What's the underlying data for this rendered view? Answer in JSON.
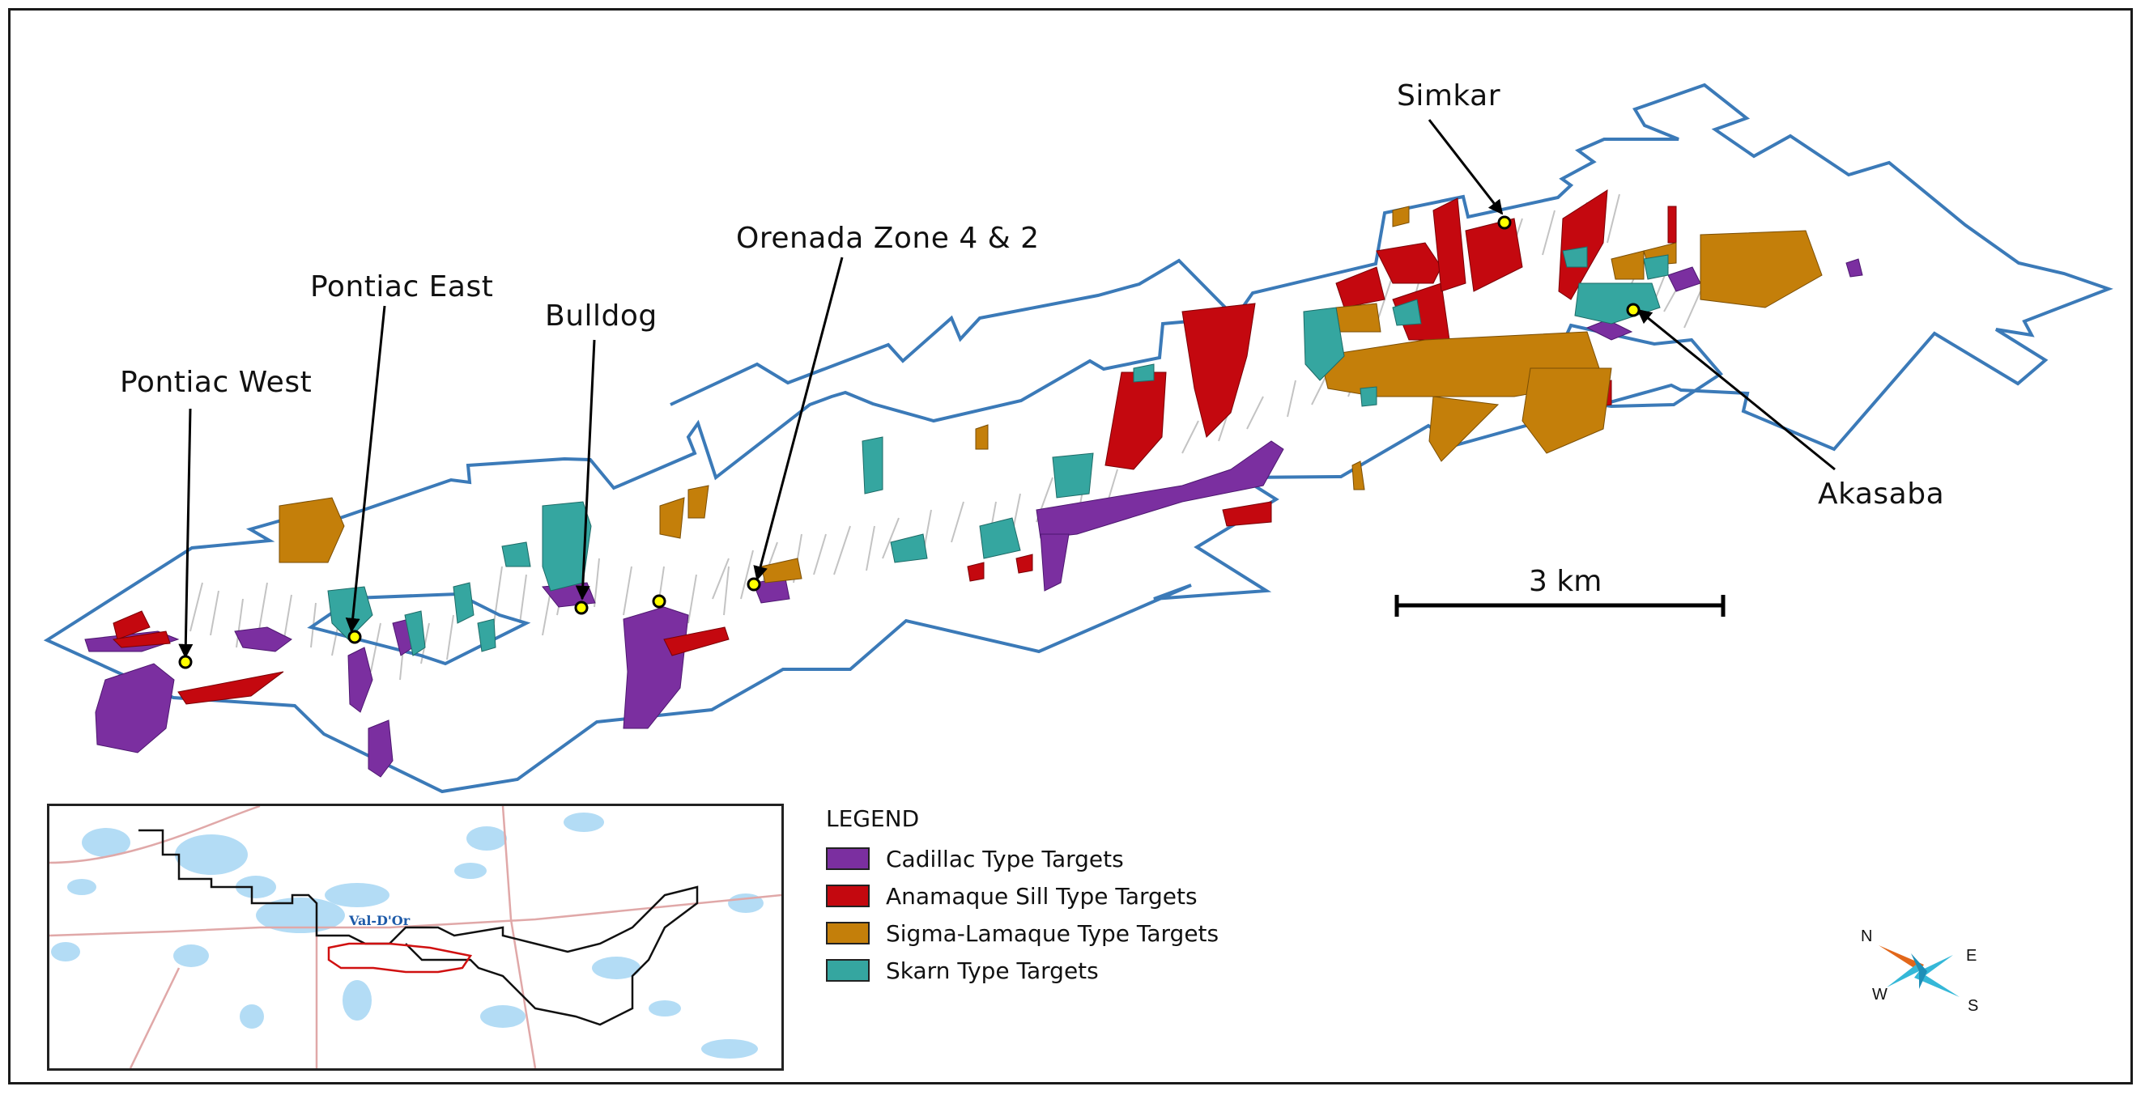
{
  "map": {
    "callouts": {
      "pontiac_west": "Pontiac West",
      "pontiac_east": "Pontiac East",
      "bulldog": "Bulldog",
      "orenada": "Orenada Zone 4 & 2",
      "simkar": "Simkar",
      "akasaba": "Akasaba"
    },
    "scale_label": "3 km"
  },
  "inset": {
    "city_label": "Val-D'Or"
  },
  "legend": {
    "title": "LEGEND",
    "items": [
      {
        "label": "Cadillac Type Targets",
        "color": "#7b2fa0"
      },
      {
        "label": "Anamaque Sill Type Targets",
        "color": "#c4080f"
      },
      {
        "label": "Sigma-Lamaque Type Targets",
        "color": "#c47f0a"
      },
      {
        "label": "Skarn Type Targets",
        "color": "#35a6a0"
      }
    ]
  },
  "compass": {
    "n": "N",
    "e": "E",
    "w": "W",
    "s": "S"
  },
  "colors": {
    "property_outline": "#3b7ab8",
    "cadillac": "#7b2fa0",
    "anamaque": "#c4080f",
    "sigma": "#c47f0a",
    "skarn": "#35a6a0",
    "marker": "#ffff00"
  }
}
